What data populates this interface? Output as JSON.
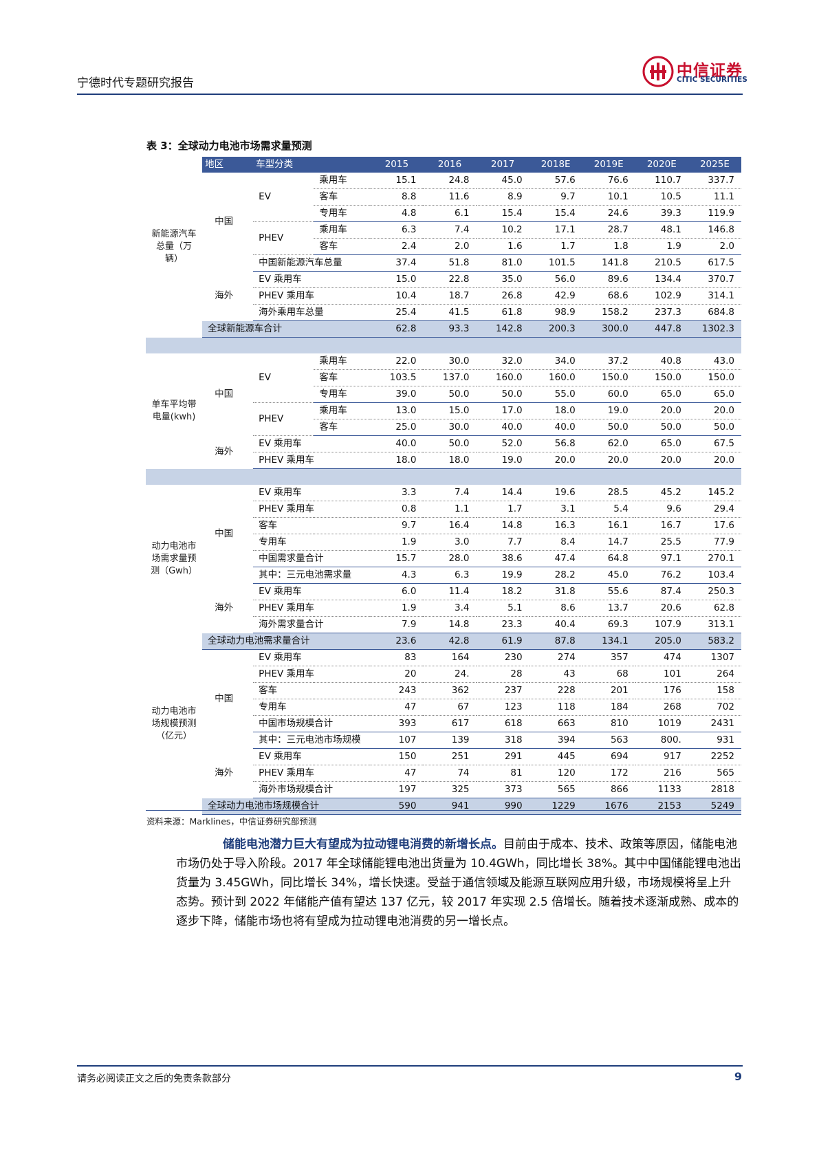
{
  "header": {
    "title": "宁德时代专题研究报告",
    "logo_cn": "中信证券",
    "logo_en": "CITIC SECURITIES"
  },
  "table": {
    "title": "表 3：全球动力电池市场需求量预测",
    "headers": [
      "地区",
      "车型分类",
      "2015",
      "2016",
      "2017",
      "2018E",
      "2019E",
      "2020E",
      "2025E"
    ],
    "sections": {
      "nev": {
        "label": "新能源汽车总量（万辆）",
        "china": "中国",
        "overseas": "海外",
        "ev": "EV",
        "phev": "PHEV",
        "rows": [
          {
            "sub": "乘用车",
            "v": [
              "15.1",
              "24.8",
              "45.0",
              "57.6",
              "76.6",
              "110.7",
              "337.7"
            ]
          },
          {
            "sub": "客车",
            "v": [
              "8.8",
              "11.6",
              "8.9",
              "9.7",
              "10.1",
              "10.5",
              "11.1"
            ]
          },
          {
            "sub": "专用车",
            "v": [
              "4.8",
              "6.1",
              "15.4",
              "15.4",
              "24.6",
              "39.3",
              "119.9"
            ]
          },
          {
            "sub": "乘用车",
            "v": [
              "6.3",
              "7.4",
              "10.2",
              "17.1",
              "28.7",
              "48.1",
              "146.8"
            ]
          },
          {
            "sub": "客车",
            "v": [
              "2.4",
              "2.0",
              "1.6",
              "1.7",
              "1.8",
              "1.9",
              "2.0"
            ]
          },
          {
            "sub": "中国新能源汽车总量",
            "v": [
              "37.4",
              "51.8",
              "81.0",
              "101.5",
              "141.8",
              "210.5",
              "617.5"
            ]
          },
          {
            "sub": "EV 乘用车",
            "v": [
              "15.0",
              "22.8",
              "35.0",
              "56.0",
              "89.6",
              "134.4",
              "370.7"
            ]
          },
          {
            "sub": "PHEV 乘用车",
            "v": [
              "10.4",
              "18.7",
              "26.8",
              "42.9",
              "68.6",
              "102.9",
              "314.1"
            ]
          },
          {
            "sub": "海外乘用车总量",
            "v": [
              "25.4",
              "41.5",
              "61.8",
              "98.9",
              "158.2",
              "237.3",
              "684.8"
            ]
          }
        ],
        "total": {
          "label": "全球新能源车合计",
          "v": [
            "62.8",
            "93.3",
            "142.8",
            "200.3",
            "300.0",
            "447.8",
            "1302.3"
          ]
        }
      },
      "kwh": {
        "label": "单车平均带电量(kwh)",
        "china": "中国",
        "overseas": "海外",
        "ev": "EV",
        "phev": "PHEV",
        "rows": [
          {
            "sub": "乘用车",
            "v": [
              "22.0",
              "30.0",
              "32.0",
              "34.0",
              "37.2",
              "40.8",
              "43.0"
            ]
          },
          {
            "sub": "客车",
            "v": [
              "103.5",
              "137.0",
              "160.0",
              "160.0",
              "150.0",
              "150.0",
              "150.0"
            ]
          },
          {
            "sub": "专用车",
            "v": [
              "39.0",
              "50.0",
              "50.0",
              "55.0",
              "60.0",
              "65.0",
              "65.0"
            ]
          },
          {
            "sub": "乘用车",
            "v": [
              "13.0",
              "15.0",
              "17.0",
              "18.0",
              "19.0",
              "20.0",
              "20.0"
            ]
          },
          {
            "sub": "客车",
            "v": [
              "25.0",
              "30.0",
              "40.0",
              "40.0",
              "50.0",
              "50.0",
              "50.0"
            ]
          },
          {
            "sub": "EV 乘用车",
            "v": [
              "40.0",
              "50.0",
              "52.0",
              "56.8",
              "62.0",
              "65.0",
              "67.5"
            ]
          },
          {
            "sub": "PHEV 乘用车",
            "v": [
              "18.0",
              "18.0",
              "19.0",
              "20.0",
              "20.0",
              "20.0",
              "20.0"
            ]
          }
        ]
      },
      "gwh": {
        "label": "动力电池市场需求量预测（Gwh）",
        "china": "中国",
        "overseas": "海外",
        "rows": [
          {
            "sub": "EV 乘用车",
            "v": [
              "3.3",
              "7.4",
              "14.4",
              "19.6",
              "28.5",
              "45.2",
              "145.2"
            ]
          },
          {
            "sub": "PHEV 乘用车",
            "v": [
              "0.8",
              "1.1",
              "1.7",
              "3.1",
              "5.4",
              "9.6",
              "29.4"
            ]
          },
          {
            "sub": "客车",
            "v": [
              "9.7",
              "16.4",
              "14.8",
              "16.3",
              "16.1",
              "16.7",
              "17.6"
            ]
          },
          {
            "sub": "专用车",
            "v": [
              "1.9",
              "3.0",
              "7.7",
              "8.4",
              "14.7",
              "25.5",
              "77.9"
            ]
          },
          {
            "sub": "中国需求量合计",
            "v": [
              "15.7",
              "28.0",
              "38.6",
              "47.4",
              "64.8",
              "97.1",
              "270.1"
            ]
          },
          {
            "sub": "其中：三元电池需求量",
            "v": [
              "4.3",
              "6.3",
              "19.9",
              "28.2",
              "45.0",
              "76.2",
              "103.4"
            ]
          },
          {
            "sub": "EV 乘用车",
            "v": [
              "6.0",
              "11.4",
              "18.2",
              "31.8",
              "55.6",
              "87.4",
              "250.3"
            ]
          },
          {
            "sub": "PHEV 乘用车",
            "v": [
              "1.9",
              "3.4",
              "5.1",
              "8.6",
              "13.7",
              "20.6",
              "62.8"
            ]
          },
          {
            "sub": "海外需求量合计",
            "v": [
              "7.9",
              "14.8",
              "23.3",
              "40.4",
              "69.3",
              "107.9",
              "313.1"
            ]
          }
        ],
        "total": {
          "label": "全球动力电池需求量合计",
          "v": [
            "23.6",
            "42.8",
            "61.9",
            "87.8",
            "134.1",
            "205.0",
            "583.2"
          ]
        }
      },
      "market": {
        "label": "动力电池市场规模预测（亿元）",
        "china": "中国",
        "overseas": "海外",
        "rows": [
          {
            "sub": "EV 乘用车",
            "v": [
              "83",
              "164",
              "230",
              "274",
              "357",
              "474",
              "1307"
            ]
          },
          {
            "sub": "PHEV 乘用车",
            "v": [
              "20",
              "24.",
              "28",
              "43",
              "68",
              "101",
              "264"
            ]
          },
          {
            "sub": "客车",
            "v": [
              "243",
              "362",
              "237",
              "228",
              "201",
              "176",
              "158"
            ]
          },
          {
            "sub": "专用车",
            "v": [
              "47",
              "67",
              "123",
              "118",
              "184",
              "268",
              "702"
            ]
          },
          {
            "sub": "中国市场规模合计",
            "v": [
              "393",
              "617",
              "618",
              "663",
              "810",
              "1019",
              "2431"
            ]
          },
          {
            "sub": "其中：三元电池市场规模",
            "v": [
              "107",
              "139",
              "318",
              "394",
              "563",
              "800.",
              "931"
            ]
          },
          {
            "sub": "EV 乘用车",
            "v": [
              "150",
              "251",
              "291",
              "445",
              "694",
              "917",
              "2252"
            ]
          },
          {
            "sub": "PHEV 乘用车",
            "v": [
              "47",
              "74",
              "81",
              "120",
              "172",
              "216",
              "565"
            ]
          },
          {
            "sub": "海外市场规模合计",
            "v": [
              "197",
              "325",
              "373",
              "565",
              "866",
              "1133",
              "2818"
            ]
          }
        ],
        "total": {
          "label": "全球动力电池市场规模合计",
          "v": [
            "590",
            "941",
            "990",
            "1229",
            "1676",
            "2153",
            "5249"
          ]
        }
      }
    },
    "source": "资料来源：Marklines，中信证券研究部预测"
  },
  "paragraph": {
    "lead": "储能电池潜力巨大有望成为拉动锂电消费的新增长点。",
    "body": "目前由于成本、技术、政策等原因，储能电池市场仍处于导入阶段。2017 年全球储能锂电池出货量为 10.4GWh，同比增长 38%。其中中国储能锂电池出货量为 3.45GWh，同比增长 34%，增长快速。受益于通信领域及能源互联网应用升级，市场规模将呈上升态势。预计到 2022 年储能产值有望达 137 亿元，较 2017 年实现 2.5 倍增长。随着技术逐渐成熟、成本的逐步下降，储能市场也将有望成为拉动锂电池消费的另一增长点。"
  },
  "footer": {
    "disclaimer": "请务必阅读正文之后的免责条款部分",
    "page": "9"
  }
}
